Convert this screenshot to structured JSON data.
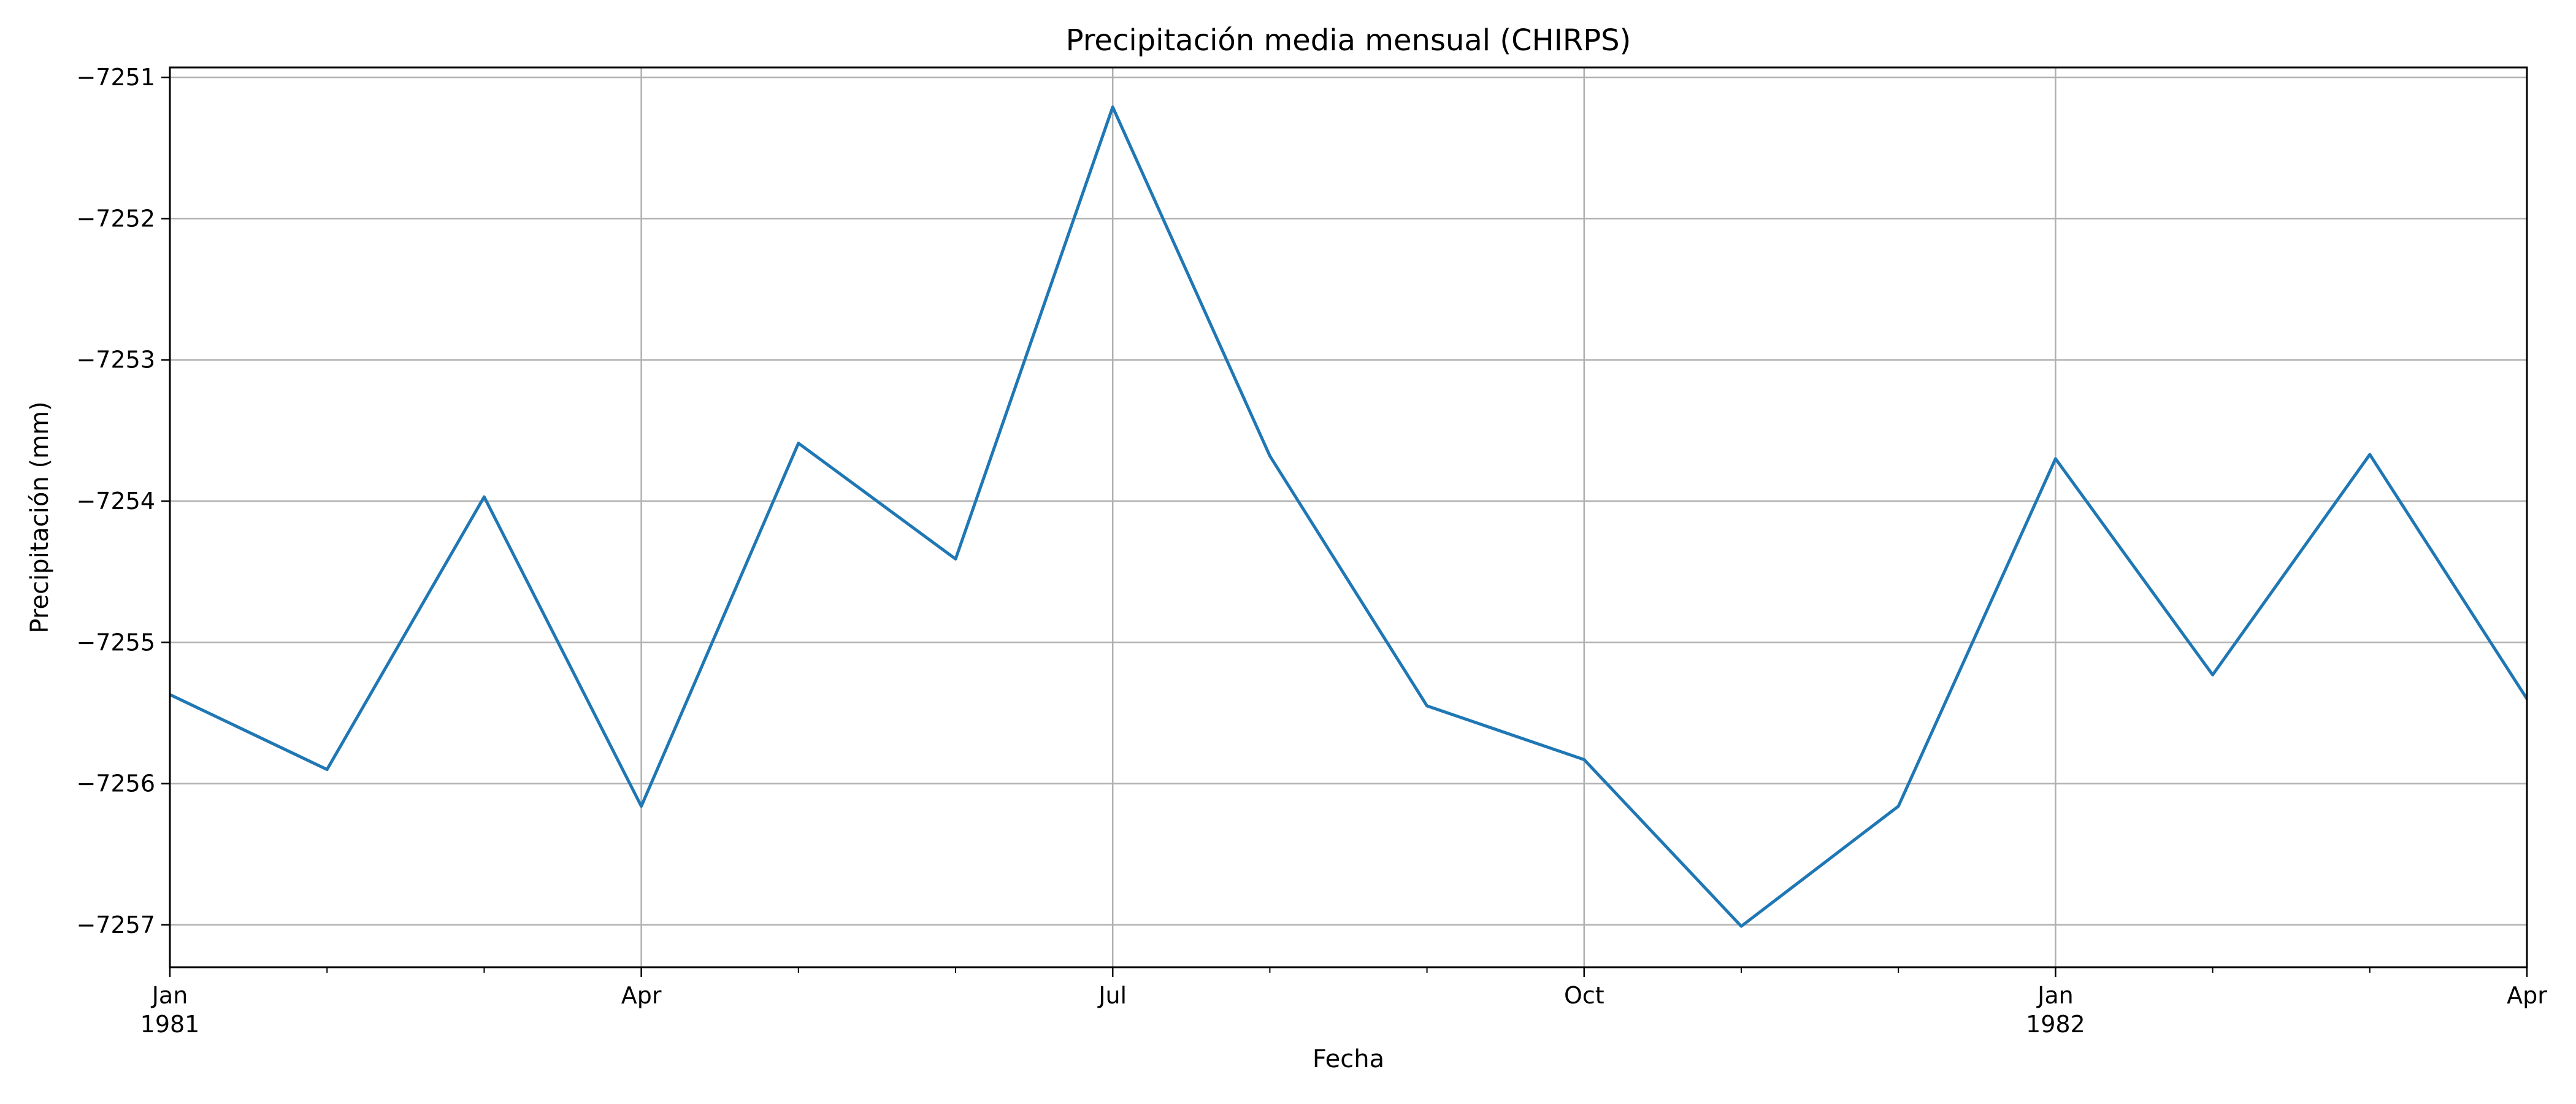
{
  "chart_data": {
    "type": "line",
    "title": "Precipitación media mensual (CHIRPS)",
    "xlabel": "Fecha",
    "ylabel": "Precipitación (mm)",
    "x": [
      "1981-01",
      "1981-02",
      "1981-03",
      "1981-04",
      "1981-05",
      "1981-06",
      "1981-07",
      "1981-08",
      "1981-09",
      "1981-10",
      "1981-11",
      "1981-12",
      "1982-01",
      "1982-02",
      "1982-03",
      "1982-04"
    ],
    "series": [
      {
        "values": [
          -7255.37,
          -7255.9,
          -7253.97,
          -7256.16,
          -7253.59,
          -7254.41,
          -7251.21,
          -7253.68,
          -7255.45,
          -7255.83,
          -7257.01,
          -7256.16,
          -7253.7,
          -7255.23,
          -7253.67,
          -7255.4
        ],
        "color": "#1f77b4"
      }
    ],
    "xlim": [
      "1981-01",
      "1982-04"
    ],
    "ylim": [
      -7257.3,
      -7250.93
    ],
    "yticks": [
      -7257,
      -7256,
      -7255,
      -7254,
      -7253,
      -7252,
      -7251
    ],
    "ytick_labels": [
      "−7257",
      "−7256",
      "−7255",
      "−7254",
      "−7253",
      "−7252",
      "−7251"
    ],
    "xticks": [
      {
        "x": "1981-01",
        "line1": "Jan",
        "line2": "1981"
      },
      {
        "x": "1981-04",
        "line1": "Apr",
        "line2": ""
      },
      {
        "x": "1981-07",
        "line1": "Jul",
        "line2": ""
      },
      {
        "x": "1981-10",
        "line1": "Oct",
        "line2": ""
      },
      {
        "x": "1982-01",
        "line1": "Jan",
        "line2": "1982"
      },
      {
        "x": "1982-04",
        "line1": "Apr",
        "line2": ""
      }
    ],
    "grid": true,
    "legend": "none",
    "grid_color": "#b0b0b0"
  }
}
